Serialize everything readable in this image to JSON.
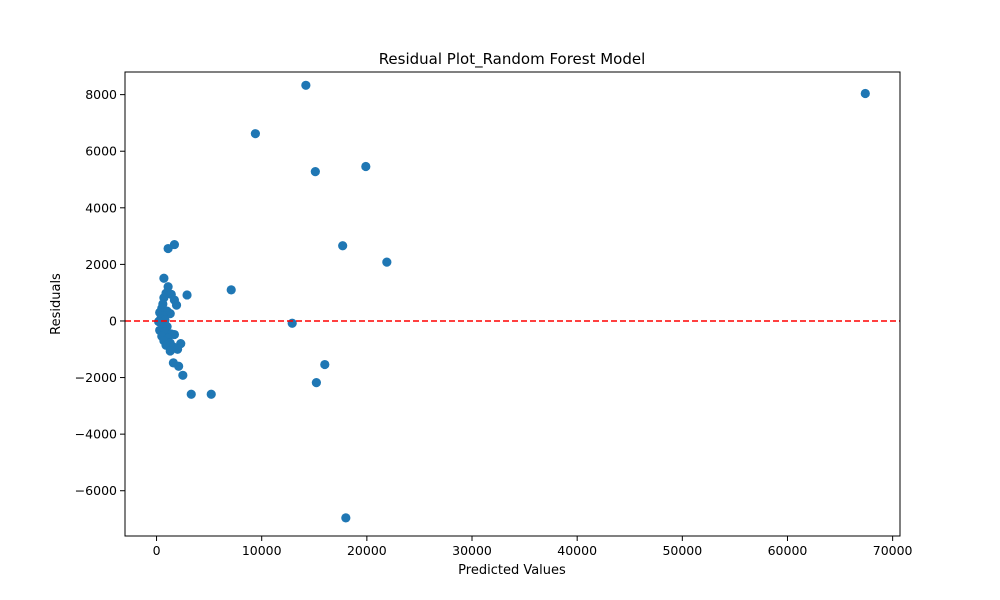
{
  "chart_data": {
    "type": "scatter",
    "title": "Residual Plot_Random Forest Model",
    "xlabel": "Predicted Values",
    "ylabel": "Residuals",
    "xlim": [
      -3000,
      70700
    ],
    "ylim": [
      -7600,
      8800
    ],
    "x_ticks": [
      0,
      10000,
      20000,
      30000,
      40000,
      50000,
      60000,
      70000
    ],
    "x_tick_labels": [
      "0",
      "10000",
      "20000",
      "30000",
      "40000",
      "50000",
      "60000",
      "70000"
    ],
    "y_ticks": [
      -6000,
      -4000,
      -2000,
      0,
      2000,
      4000,
      6000,
      8000
    ],
    "y_tick_labels": [
      "−6000",
      "−4000",
      "−2000",
      "0",
      "2000",
      "4000",
      "6000",
      "8000"
    ],
    "grid": false,
    "marker_color": "#1f77b4",
    "reference_line": {
      "y": 0,
      "color": "#ff0000",
      "style": "dashed"
    },
    "points": [
      {
        "x": 14200,
        "y": 8330
      },
      {
        "x": 67400,
        "y": 8040
      },
      {
        "x": 9400,
        "y": 6620
      },
      {
        "x": 19900,
        "y": 5460
      },
      {
        "x": 15100,
        "y": 5280
      },
      {
        "x": 1700,
        "y": 2700
      },
      {
        "x": 1100,
        "y": 2560
      },
      {
        "x": 17700,
        "y": 2660
      },
      {
        "x": 21900,
        "y": 2080
      },
      {
        "x": 700,
        "y": 1510
      },
      {
        "x": 1100,
        "y": 1210
      },
      {
        "x": 7100,
        "y": 1100
      },
      {
        "x": 900,
        "y": 980
      },
      {
        "x": 1400,
        "y": 940
      },
      {
        "x": 2900,
        "y": 920
      },
      {
        "x": 700,
        "y": 820
      },
      {
        "x": 1700,
        "y": 740
      },
      {
        "x": 600,
        "y": 600
      },
      {
        "x": 1900,
        "y": 560
      },
      {
        "x": 500,
        "y": 450
      },
      {
        "x": 1000,
        "y": 350
      },
      {
        "x": 300,
        "y": 300
      },
      {
        "x": 1300,
        "y": 260
      },
      {
        "x": 600,
        "y": 180
      },
      {
        "x": 400,
        "y": 80
      },
      {
        "x": 800,
        "y": 30
      },
      {
        "x": 200,
        "y": -20
      },
      {
        "x": 12900,
        "y": -80
      },
      {
        "x": 1000,
        "y": -200
      },
      {
        "x": 600,
        "y": -250
      },
      {
        "x": 300,
        "y": -330
      },
      {
        "x": 800,
        "y": -380
      },
      {
        "x": 1400,
        "y": -460
      },
      {
        "x": 1700,
        "y": -480
      },
      {
        "x": 500,
        "y": -540
      },
      {
        "x": 1100,
        "y": -600
      },
      {
        "x": 700,
        "y": -700
      },
      {
        "x": 1300,
        "y": -780
      },
      {
        "x": 2300,
        "y": -800
      },
      {
        "x": 900,
        "y": -860
      },
      {
        "x": 1600,
        "y": -920
      },
      {
        "x": 2000,
        "y": -1000
      },
      {
        "x": 1300,
        "y": -1060
      },
      {
        "x": 1600,
        "y": -1480
      },
      {
        "x": 2100,
        "y": -1600
      },
      {
        "x": 16000,
        "y": -1540
      },
      {
        "x": 2500,
        "y": -1920
      },
      {
        "x": 15200,
        "y": -2180
      },
      {
        "x": 3300,
        "y": -2590
      },
      {
        "x": 5200,
        "y": -2590
      },
      {
        "x": 18000,
        "y": -6960
      }
    ]
  }
}
